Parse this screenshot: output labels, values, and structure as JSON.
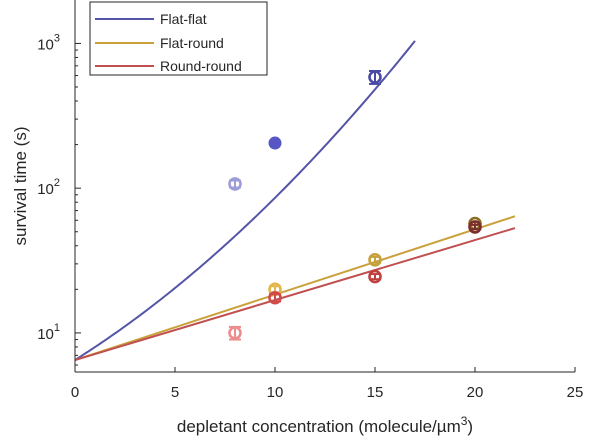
{
  "chart_data": {
    "type": "scatter",
    "xlabel": "depletant concentration (molecule/µm",
    "xlabel_superscript": "3",
    "xlabel_close": ")",
    "ylabel": "survival time (s)",
    "xlim": [
      0,
      25
    ],
    "ylim_log10": [
      0.73,
      3.3
    ],
    "y_scale": "log",
    "grid": false,
    "legend_position": "top-left",
    "x_ticks": [
      0,
      5,
      10,
      15,
      20,
      25
    ],
    "y_ticks": [
      {
        "value": 10,
        "base": "10",
        "exp": "1"
      },
      {
        "value": 100,
        "base": "10",
        "exp": "2"
      },
      {
        "value": 1000,
        "base": "10",
        "exp": "3"
      }
    ],
    "series": [
      {
        "name": "Flat-flat",
        "color": "#5454a8",
        "fit_line": {
          "x0": 0,
          "y0": 6.5,
          "x_end": 17.0,
          "form": "exp(a*x + b*x^2)",
          "a": 0.2,
          "b": 0.0058
        },
        "points": [
          {
            "x": 8,
            "y": 107,
            "err": 6,
            "color": "#9d9dd8",
            "style": "ring"
          },
          {
            "x": 10,
            "y": 205,
            "err": 0,
            "color": "#5656c4",
            "style": "filled"
          },
          {
            "x": 15,
            "y": 585,
            "err": 60,
            "color": "#4a4aa4",
            "style": "ring"
          }
        ]
      },
      {
        "name": "Flat-round",
        "color": "#c9a13b",
        "fit_line": {
          "x0": 0,
          "y0": 6.5,
          "x_end": 22,
          "y_end": 64
        },
        "points": [
          {
            "x": 10,
            "y": 20,
            "err": 1,
            "color": "#e3b64a",
            "style": "ring"
          },
          {
            "x": 15,
            "y": 32,
            "err": 1.5,
            "color": "#c6a13c",
            "style": "ring"
          },
          {
            "x": 20,
            "y": 57,
            "err": 1.5,
            "color": "#8a6c22",
            "style": "ring"
          }
        ]
      },
      {
        "name": "Round-round",
        "color": "#c05050",
        "fit_line": {
          "x0": 0,
          "y0": 6.5,
          "x_end": 22,
          "y_end": 53
        },
        "points": [
          {
            "x": 8,
            "y": 10,
            "err": 1,
            "color": "#ec8c8c",
            "style": "ring"
          },
          {
            "x": 10,
            "y": 17.5,
            "err": 1,
            "color": "#d14a4a",
            "style": "ring"
          },
          {
            "x": 15,
            "y": 24.5,
            "err": 1,
            "color": "#c04040",
            "style": "ring"
          },
          {
            "x": 20,
            "y": 54,
            "err": 2,
            "color": "#7c2c2c",
            "style": "ring"
          }
        ]
      }
    ]
  }
}
